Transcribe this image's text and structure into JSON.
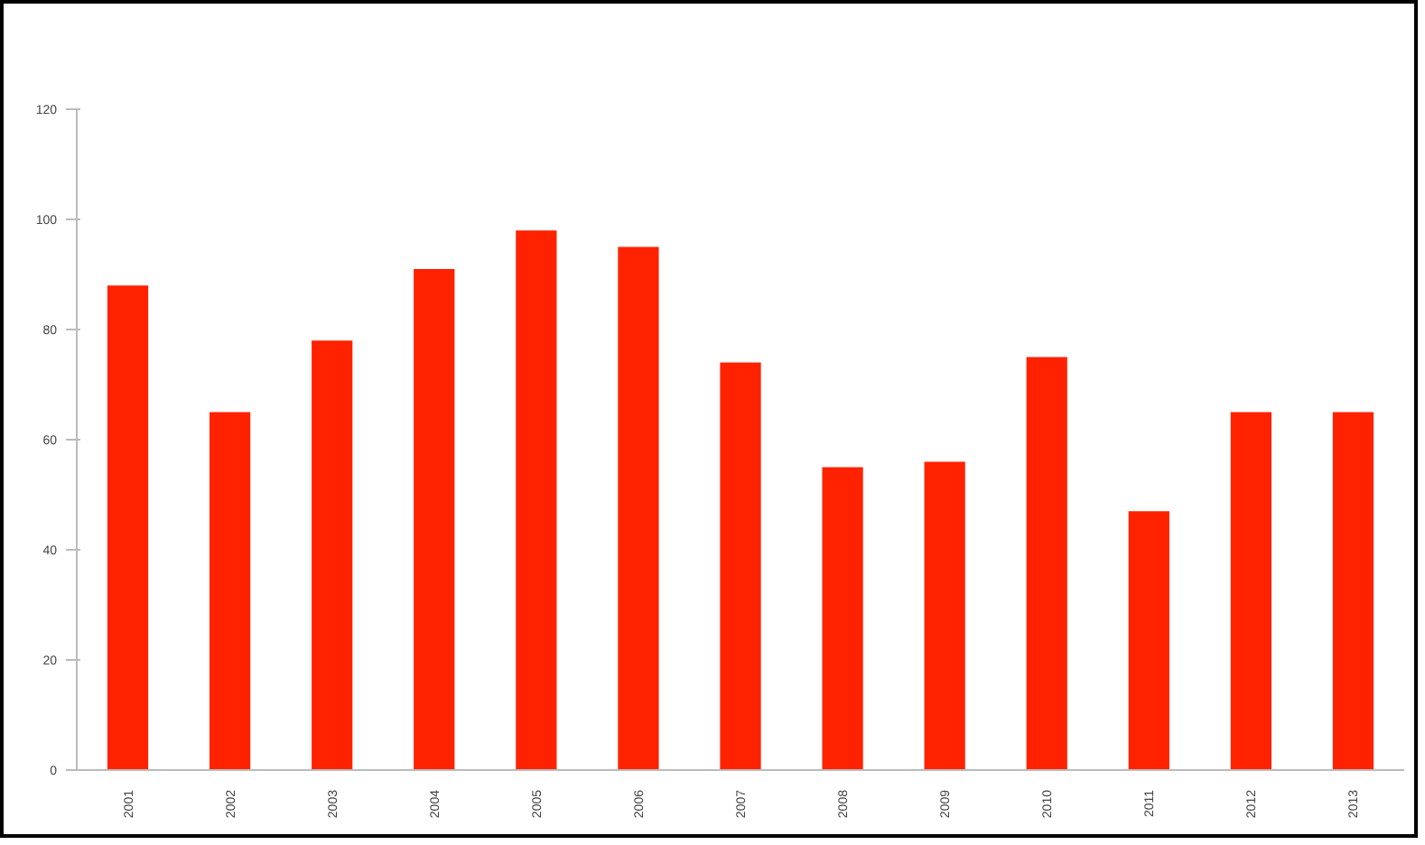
{
  "chart_data": {
    "type": "bar",
    "categories": [
      "2001",
      "2002",
      "2003",
      "2004",
      "2005",
      "2006",
      "2007",
      "2008",
      "2009",
      "2010",
      "2011",
      "2012",
      "2013"
    ],
    "values": [
      88,
      65,
      78,
      91,
      98,
      95,
      74,
      55,
      56,
      75,
      47,
      65,
      65
    ],
    "color": "#ff2200",
    "ylim": [
      0,
      120
    ],
    "yticks": [
      0,
      20,
      40,
      60,
      80,
      100,
      120
    ],
    "grid": false
  }
}
